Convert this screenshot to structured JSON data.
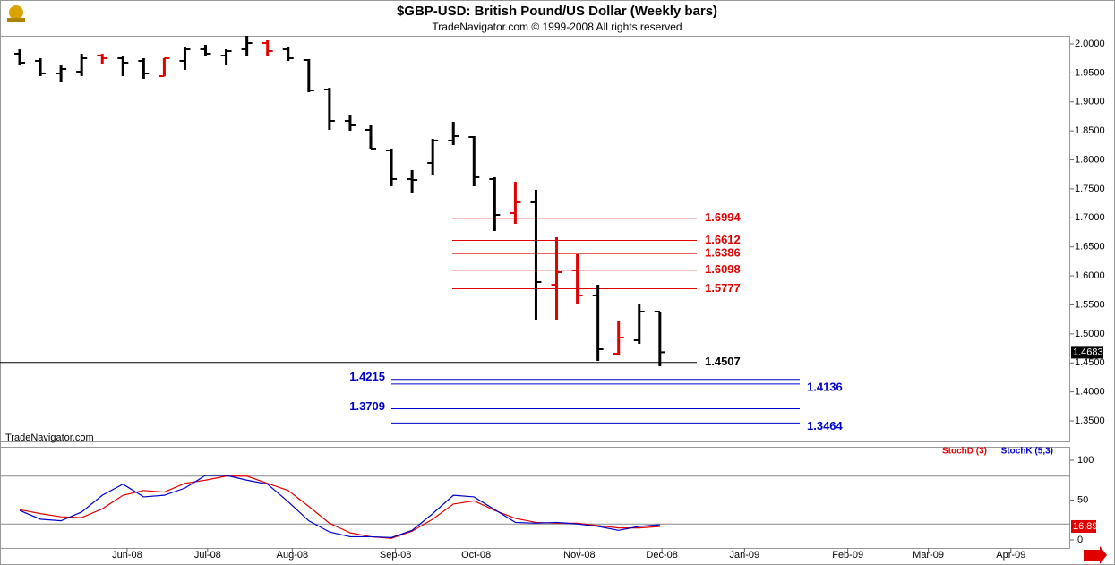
{
  "chart_data": [
    {
      "type": "ohlc",
      "title": "$GBP-USD:  British Pound/US Dollar  (Weekly bars)",
      "subtitle": "TradeNavigator.com © 1999-2008 All rights reserved",
      "watermark": "TradeNavigator.com",
      "x": [
        0,
        1,
        2,
        3,
        4,
        5,
        6,
        7,
        8,
        9,
        10,
        11,
        12,
        13,
        14,
        15,
        16,
        17,
        18,
        19,
        20,
        21,
        22,
        23,
        24,
        25,
        26,
        27,
        28,
        29,
        30,
        31
      ],
      "open": [
        1.983,
        1.9707,
        1.9491,
        1.9521,
        1.9799,
        1.9753,
        1.9707,
        1.9444,
        1.9707,
        1.9907,
        1.9799,
        1.9907,
        2.0015,
        1.9907,
        1.9722,
        1.9213,
        1.8672,
        1.8518,
        1.8163,
        1.7669,
        1.7947,
        1.8333,
        1.8394,
        1.7669,
        1.7082,
        1.7267,
        1.5847,
        1.6094,
        1.5662,
        1.4658,
        1.489,
        1.5384
      ],
      "high": [
        1.9907,
        1.9753,
        1.9629,
        1.983,
        1.983,
        1.9799,
        1.9753,
        1.9753,
        1.9938,
        1.9985,
        1.9907,
        2.0139,
        2.0062,
        1.9954,
        1.9738,
        1.9243,
        1.878,
        1.8595,
        1.8194,
        1.7823,
        1.8363,
        1.8657,
        1.841,
        1.77,
        1.7622,
        1.7483,
        1.6665,
        1.6372,
        1.5847,
        1.5229,
        1.5507,
        1.5384
      ],
      "low": [
        1.9629,
        1.9444,
        1.9336,
        1.9444,
        1.9645,
        1.9444,
        1.9398,
        1.9444,
        1.9552,
        1.9784,
        1.9629,
        1.9799,
        1.9799,
        1.9707,
        1.9166,
        1.8518,
        1.8502,
        1.8194,
        1.7545,
        1.7437,
        1.773,
        1.8255,
        1.7545,
        1.6773,
        1.6897,
        1.5245,
        1.5245,
        1.5507,
        1.4535,
        1.4627,
        1.4828,
        1.4442
      ],
      "close": [
        1.9676,
        1.9491,
        1.9568,
        1.9753,
        1.9753,
        1.9676,
        1.9491,
        1.9753,
        1.9907,
        1.983,
        1.9876,
        2.0015,
        1.9876,
        1.9753,
        1.9197,
        1.8672,
        1.8595,
        1.8194,
        1.7669,
        1.7653,
        1.8333,
        1.841,
        1.77,
        1.7051,
        1.7267,
        1.5893,
        1.6063,
        1.5662,
        1.4735,
        1.4936,
        1.5384,
        1.4683
      ],
      "colors": [
        "#000",
        "#000",
        "#000",
        "#000",
        "#e00000",
        "#000",
        "#000",
        "#e00000",
        "#000",
        "#000",
        "#000",
        "#000",
        "#e00000",
        "#000",
        "#000",
        "#000",
        "#000",
        "#000",
        "#000",
        "#000",
        "#000",
        "#000",
        "#000",
        "#000",
        "#e00000",
        "#000",
        "#e00000",
        "#e00000",
        "#000",
        "#e00000",
        "#000",
        "#000"
      ],
      "fib_levels": [
        1.6994,
        1.6612,
        1.6386,
        1.6098,
        1.5777
      ],
      "fib_color": "#e00000",
      "close_level": 1.4507,
      "close_level_color": "#000",
      "target_levels": [
        1.4215,
        1.4136,
        1.3709,
        1.3464
      ],
      "target_color": "#0000cc",
      "xlim": [
        -0.954,
        50.87
      ],
      "ylim": [
        1.3145,
        2.0139
      ],
      "yticks": [
        {
          "value": 2.0,
          "label": "2.0000"
        },
        {
          "value": 1.95,
          "label": "1.9500"
        },
        {
          "value": 1.9,
          "label": "1.9000"
        },
        {
          "value": 1.85,
          "label": "1.8500"
        },
        {
          "value": 1.8,
          "label": "1.8000"
        },
        {
          "value": 1.75,
          "label": "1.7500"
        },
        {
          "value": 1.7,
          "label": "1.7000"
        },
        {
          "value": 1.65,
          "label": "1.6500"
        },
        {
          "value": 1.6,
          "label": "1.6000"
        },
        {
          "value": 1.55,
          "label": "1.5500"
        },
        {
          "value": 1.5,
          "label": "1.5000"
        },
        {
          "value": 1.45,
          "label": "1.4500"
        },
        {
          "value": 1.4,
          "label": "1.4000"
        },
        {
          "value": 1.35,
          "label": "1.3500"
        }
      ]
    },
    {
      "type": "line",
      "x": [
        0,
        1,
        2,
        3,
        4,
        5,
        6,
        7,
        8,
        9,
        10,
        11,
        12,
        13,
        14,
        15,
        16,
        17,
        18,
        19,
        20,
        21,
        22,
        23,
        24,
        25,
        26,
        27,
        28,
        29,
        30,
        31
      ],
      "series": [
        {
          "name": "StochD (3)",
          "color": "#e00000",
          "values": [
            38,
            33,
            29,
            28,
            39,
            56,
            62,
            60,
            71,
            75,
            80,
            80,
            71,
            62,
            42,
            21,
            9,
            4,
            2,
            11,
            26,
            45,
            49,
            37,
            27,
            22,
            21,
            21,
            18,
            15,
            15,
            16.89
          ]
        },
        {
          "name": "StochK (5,3)",
          "color": "#0000cc",
          "values": [
            37,
            26,
            24,
            35,
            56,
            70,
            54,
            56,
            65,
            81,
            81,
            75,
            70,
            48,
            24,
            10,
            4,
            4,
            3,
            12,
            33,
            56,
            54,
            38,
            22,
            21,
            22,
            20,
            17,
            12,
            17,
            19
          ]
        }
      ],
      "ref_lines": [
        80,
        20
      ],
      "xlim": [
        -0.954,
        50.87
      ],
      "ylim": [
        -10.1,
        115.7
      ],
      "yticks": [
        100,
        50,
        0
      ],
      "xticks": [
        {
          "value": 5.2,
          "label": "Jun-08"
        },
        {
          "value": 9.1,
          "label": "Jul-08"
        },
        {
          "value": 13.2,
          "label": "Aug-08"
        },
        {
          "value": 18.2,
          "label": "Sep-08"
        },
        {
          "value": 22.1,
          "label": "Oct-08"
        },
        {
          "value": 27.1,
          "label": "Nov-08"
        },
        {
          "value": 31.1,
          "label": "Dec-08"
        },
        {
          "value": 35.1,
          "label": "Jan-09"
        },
        {
          "value": 40.1,
          "label": "Feb-09"
        },
        {
          "value": 44.0,
          "label": "Mar-09"
        },
        {
          "value": 48.0,
          "label": "Apr-09"
        }
      ]
    }
  ]
}
